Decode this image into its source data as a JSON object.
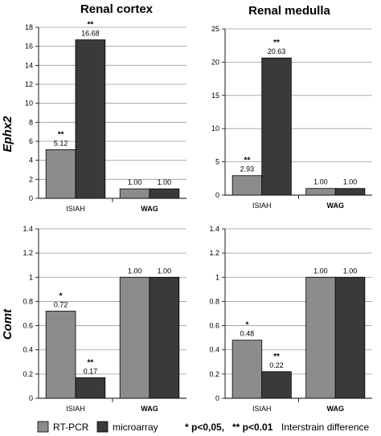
{
  "column_titles": [
    "Renal cortex",
    "Renal medulla"
  ],
  "row_labels": [
    "Ephx2",
    "Comt"
  ],
  "legend": {
    "series": [
      {
        "name": "RT-PCR",
        "color": "#8c8c8c"
      },
      {
        "name": "microarray",
        "color": "#3a3a3a"
      }
    ],
    "note_sig1": "* p<0,05,",
    "note_sig2": "** p<0.01",
    "note_text": "Interstrain difference"
  },
  "chart_data": [
    {
      "type": "bar",
      "categories": [
        "ISIAH",
        "WAG"
      ],
      "series": [
        {
          "name": "RT-PCR",
          "values": [
            5.12,
            1.0
          ],
          "labels": [
            "5.12",
            "1.00"
          ],
          "sig": [
            "**",
            ""
          ]
        },
        {
          "name": "microarray",
          "values": [
            16.68,
            1.0
          ],
          "labels": [
            "16.68",
            "1.00"
          ],
          "sig": [
            "**",
            ""
          ]
        }
      ],
      "ylim": [
        0,
        18
      ],
      "yticks": [
        0,
        2,
        4,
        6,
        8,
        10,
        12,
        14,
        16,
        18
      ],
      "ytick_labels": [
        "0",
        "2",
        "4",
        "6",
        "8",
        "10",
        "12",
        "14",
        "16",
        "18"
      ]
    },
    {
      "type": "bar",
      "categories": [
        "ISIAH",
        "WAG"
      ],
      "series": [
        {
          "name": "RT-PCR",
          "values": [
            2.93,
            1.0
          ],
          "labels": [
            "2.93",
            "1.00"
          ],
          "sig": [
            "**",
            ""
          ]
        },
        {
          "name": "microarray",
          "values": [
            20.63,
            1.0
          ],
          "labels": [
            "20.63",
            "1.00"
          ],
          "sig": [
            "**",
            ""
          ]
        }
      ],
      "ylim": [
        0,
        25
      ],
      "yticks": [
        0,
        5,
        10,
        15,
        20,
        25
      ],
      "ytick_labels": [
        "0",
        "5",
        "10",
        "15",
        "20",
        "25"
      ]
    },
    {
      "type": "bar",
      "categories": [
        "ISIAH",
        "WAG"
      ],
      "series": [
        {
          "name": "RT-PCR",
          "values": [
            0.72,
            1.0
          ],
          "labels": [
            "0.72",
            "1.00"
          ],
          "sig": [
            "*",
            ""
          ]
        },
        {
          "name": "microarray",
          "values": [
            0.17,
            1.0
          ],
          "labels": [
            "0.17",
            "1.00"
          ],
          "sig": [
            "**",
            ""
          ]
        }
      ],
      "ylim": [
        0,
        1.4
      ],
      "yticks": [
        0,
        0.2,
        0.4,
        0.6,
        0.8,
        1,
        1.2,
        1.4
      ],
      "ytick_labels": [
        "0",
        "0.2",
        "0.4",
        "0.6",
        "0.8",
        "1",
        "1.2",
        "1.4"
      ]
    },
    {
      "type": "bar",
      "categories": [
        "ISIAH",
        "WAG"
      ],
      "series": [
        {
          "name": "RT-PCR",
          "values": [
            0.48,
            1.0
          ],
          "labels": [
            "0.48",
            "1.00"
          ],
          "sig": [
            "*",
            ""
          ]
        },
        {
          "name": "microarray",
          "values": [
            0.22,
            1.0
          ],
          "labels": [
            "0.22",
            "1.00"
          ],
          "sig": [
            "**",
            ""
          ]
        }
      ],
      "ylim": [
        0,
        1.4
      ],
      "yticks": [
        0,
        0.2,
        0.4,
        0.6,
        0.8,
        1,
        1.2,
        1.4
      ],
      "ytick_labels": [
        "0",
        "0.2",
        "0.4",
        "0.6",
        "0.8",
        "1",
        "1.2",
        "1.4"
      ]
    }
  ]
}
